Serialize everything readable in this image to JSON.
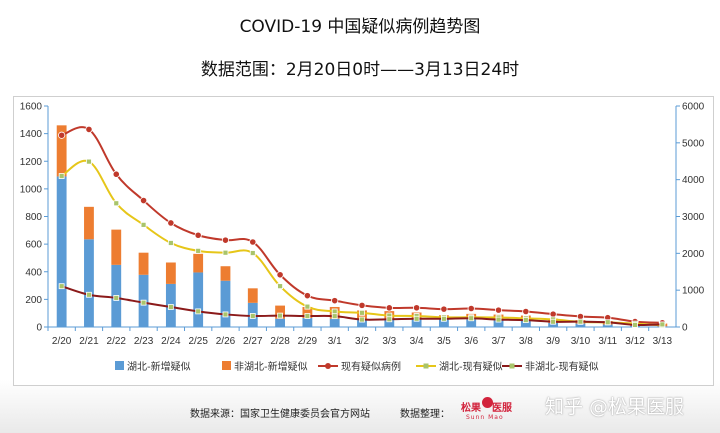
{
  "header": {
    "title": "COVID-19 中国疑似病例趋势图",
    "subtitle": "数据范围：2月20日0时——3月13日24时"
  },
  "footer": {
    "source": "数据来源：国家卫生健康委员会官方网站",
    "compiler_label": "数据整理：",
    "logo_text_a": "松果",
    "logo_text_b": "医服",
    "logo_sub": "Sunn Mao",
    "watermark": "知乎 @松果医服"
  },
  "colors": {
    "hubei_new": "#5b9bd5",
    "non_hubei_new": "#ed7d31",
    "current_total": "#c0392b",
    "hubei_current": "#e6c619",
    "non_hubei_current": "#8b1a1a",
    "axis": "#5b9bd5"
  },
  "chart_data": {
    "type": "bar",
    "categories": [
      "2/20",
      "2/21",
      "2/22",
      "2/23",
      "2/24",
      "2/25",
      "2/26",
      "2/27",
      "2/28",
      "2/29",
      "3/1",
      "3/2",
      "3/3",
      "3/4",
      "3/5",
      "3/6",
      "3/7",
      "3/8",
      "3/9",
      "3/10",
      "3/11",
      "3/12",
      "3/13"
    ],
    "left_axis": {
      "min": 0,
      "max": 1600,
      "ticks": [
        "0",
        "200",
        "400",
        "600",
        "800",
        "1000",
        "1200",
        "1400",
        "1600"
      ]
    },
    "right_axis": {
      "min": 0,
      "max": 6000,
      "ticks": [
        "0",
        "1000",
        "2000",
        "3000",
        "4000",
        "5000",
        "6000"
      ]
    },
    "series": [
      {
        "name": "湖北-新增疑似",
        "type": "bar",
        "axis": "left",
        "stack": "new",
        "values": [
          1090,
          635,
          450,
          378,
          312,
          395,
          335,
          175,
          60,
          65,
          60,
          50,
          55,
          55,
          55,
          55,
          50,
          48,
          30,
          25,
          18,
          8,
          5
        ]
      },
      {
        "name": "非湖北-新增疑似",
        "type": "bar",
        "axis": "left",
        "stack": "new",
        "values": [
          370,
          235,
          255,
          160,
          155,
          135,
          105,
          105,
          95,
          80,
          85,
          70,
          60,
          50,
          30,
          40,
          40,
          35,
          30,
          25,
          25,
          25,
          20
        ]
      },
      {
        "name": "现有疑似病例",
        "type": "line",
        "axis": "right",
        "marker": "circle",
        "values": [
          5206,
          5365,
          4148,
          3434,
          2824,
          2491,
          2358,
          2308,
          1418,
          851,
          715,
          587,
          520,
          522,
          485,
          502,
          458,
          421,
          349,
          285,
          253,
          147,
          115
        ]
      },
      {
        "name": "湖北-现有疑似",
        "type": "line",
        "axis": "right",
        "marker": "square",
        "values": [
          4098,
          4490,
          3359,
          2773,
          2281,
          2067,
          2017,
          2008,
          1109,
          553,
          421,
          385,
          310,
          298,
          262,
          265,
          257,
          234,
          206,
          140,
          124,
          91,
          45
        ]
      },
      {
        "name": "非湖北-现有疑似",
        "type": "line",
        "axis": "right",
        "marker": "square",
        "values": [
          1108,
          875,
          789,
          661,
          543,
          424,
          341,
          300,
          309,
          298,
          294,
          202,
          210,
          224,
          223,
          237,
          201,
          187,
          143,
          145,
          129,
          56,
          70
        ]
      }
    ],
    "legend_position": "bottom",
    "grid": false
  }
}
